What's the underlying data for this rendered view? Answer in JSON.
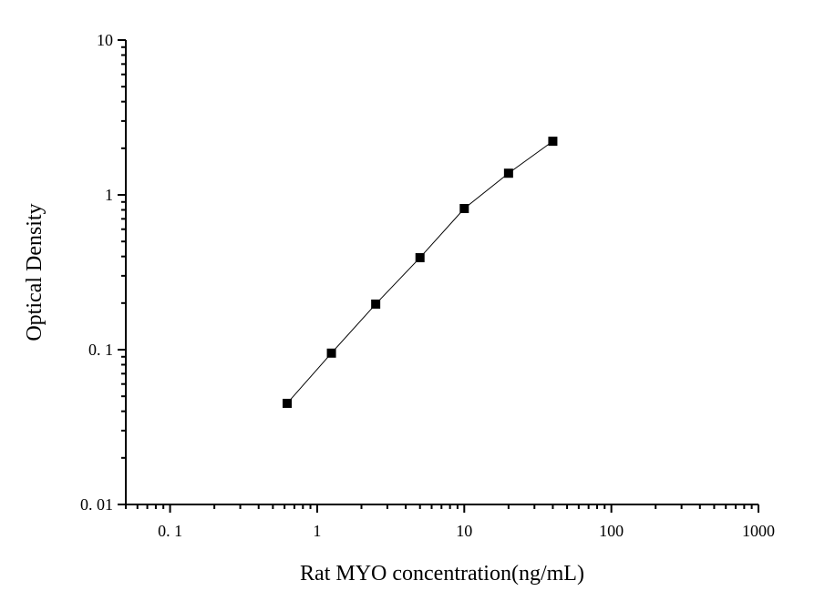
{
  "chart_data": {
    "type": "scatter",
    "title": "",
    "xlabel": "Rat MYO concentration(ng/mL)",
    "ylabel": "Optical Density",
    "xscale": "log",
    "yscale": "log",
    "xlim": [
      0.05,
      1000
    ],
    "ylim": [
      0.01,
      10
    ],
    "xticks": [
      {
        "v": 0.1,
        "label": "0. 1"
      },
      {
        "v": 1,
        "label": "1"
      },
      {
        "v": 10,
        "label": "10"
      },
      {
        "v": 100,
        "label": "100"
      },
      {
        "v": 1000,
        "label": "1000"
      }
    ],
    "yticks": [
      {
        "v": 0.01,
        "label": "0. 01"
      },
      {
        "v": 0.1,
        "label": "0. 1"
      },
      {
        "v": 1,
        "label": "1"
      },
      {
        "v": 10,
        "label": "10"
      }
    ],
    "grid": false,
    "series": [
      {
        "x": [
          0.625,
          1.25,
          2.5,
          5,
          10,
          20,
          40
        ],
        "y": [
          0.045,
          0.095,
          0.197,
          0.393,
          0.816,
          1.38,
          2.22
        ],
        "marker": "square",
        "line": true,
        "color": "#000000"
      }
    ]
  }
}
